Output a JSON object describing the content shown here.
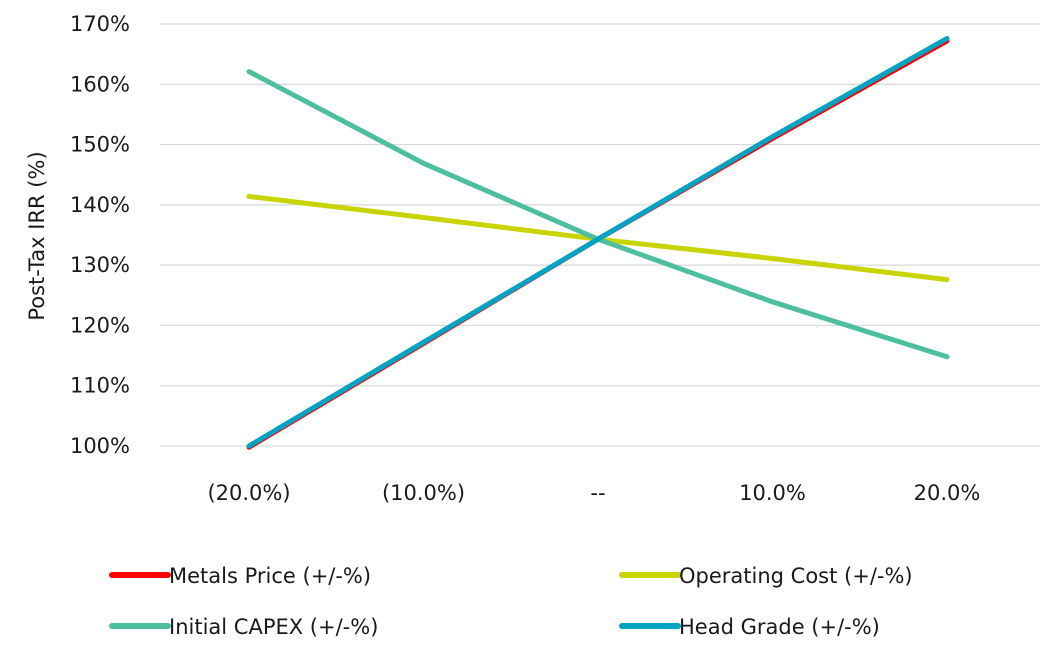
{
  "chart_data": {
    "type": "line",
    "title": "",
    "xlabel": "",
    "ylabel": "Post-Tax IRR (%)",
    "categories": [
      "(20.0%)",
      "(10.0%)",
      "--",
      "10.0%",
      "20.0%"
    ],
    "ylim": [
      1.0,
      1.7
    ],
    "yticks": [
      1.0,
      1.1,
      1.2,
      1.3,
      1.4,
      1.5,
      1.6,
      1.7
    ],
    "ytick_labels": [
      "100%",
      "110%",
      "120%",
      "130%",
      "140%",
      "150%",
      "160%",
      "170%"
    ],
    "grid": true,
    "legend_position": "bottom",
    "series": [
      {
        "name": "Metals Price (+/-%)",
        "color": "#ff0000",
        "values": [
          0.998,
          1.17,
          1.343,
          1.51,
          1.672
        ]
      },
      {
        "name": "Operating Cost (+/-%)",
        "color": "#c8d400",
        "values": [
          1.414,
          1.379,
          1.343,
          1.311,
          1.276
        ]
      },
      {
        "name": "Initial CAPEX (+/-%)",
        "color": "#4dbf9f",
        "values": [
          1.621,
          1.469,
          1.343,
          1.239,
          1.148
        ]
      },
      {
        "name": "Head Grade (+/-%)",
        "color": "#00a3c4",
        "values": [
          1.0,
          1.172,
          1.343,
          1.513,
          1.676
        ]
      }
    ]
  }
}
